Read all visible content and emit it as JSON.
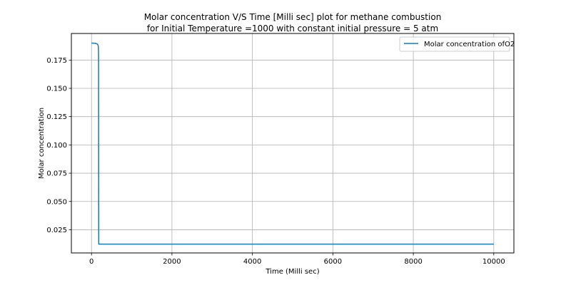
{
  "chart_data": {
    "type": "line",
    "title": "Molar concentration V/S Time [Milli sec] plot for methane combustion",
    "subtitle": "for Initial Temperature =1000 with constant initial pressure = 5 atm",
    "xlabel": "Time (Milli sec)",
    "ylabel": "Molar concentration",
    "xlim": [
      -500,
      10500
    ],
    "ylim": [
      0.0045,
      0.1985
    ],
    "xticks": [
      0,
      2000,
      4000,
      6000,
      8000,
      10000
    ],
    "xtick_labels": [
      "0",
      "2000",
      "4000",
      "6000",
      "8000",
      "10000"
    ],
    "yticks": [
      0.025,
      0.05,
      0.075,
      0.1,
      0.125,
      0.15,
      0.175
    ],
    "ytick_labels": [
      "0.025",
      "0.050",
      "0.075",
      "0.100",
      "0.125",
      "0.150",
      "0.175"
    ],
    "grid": true,
    "legend_position": "upper right",
    "series": [
      {
        "name": "Molar concentration ofO2",
        "color": "#1f77b4",
        "x": [
          0,
          100,
          140,
          160,
          170,
          175,
          178,
          180,
          10000
        ],
        "y": [
          0.19,
          0.1898,
          0.1893,
          0.1885,
          0.187,
          0.18,
          0.05,
          0.0123,
          0.0123
        ]
      }
    ]
  },
  "legend": {
    "label": "Molar concentration ofO2"
  }
}
